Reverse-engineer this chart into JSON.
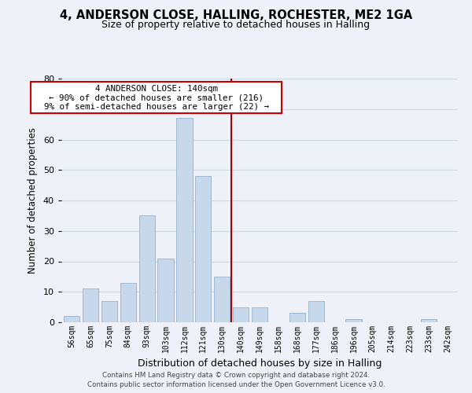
{
  "title1": "4, ANDERSON CLOSE, HALLING, ROCHESTER, ME2 1GA",
  "title2": "Size of property relative to detached houses in Halling",
  "xlabel": "Distribution of detached houses by size in Halling",
  "ylabel": "Number of detached properties",
  "bar_labels": [
    "56sqm",
    "65sqm",
    "75sqm",
    "84sqm",
    "93sqm",
    "103sqm",
    "112sqm",
    "121sqm",
    "130sqm",
    "140sqm",
    "149sqm",
    "158sqm",
    "168sqm",
    "177sqm",
    "186sqm",
    "196sqm",
    "205sqm",
    "214sqm",
    "223sqm",
    "233sqm",
    "242sqm"
  ],
  "bar_heights": [
    2,
    11,
    7,
    13,
    35,
    21,
    67,
    48,
    15,
    5,
    5,
    0,
    3,
    7,
    0,
    1,
    0,
    0,
    0,
    1,
    0
  ],
  "bar_color": "#c8d8eb",
  "bar_edge_color": "#a0b8d0",
  "vline_index": 9,
  "annotation_title": "4 ANDERSON CLOSE: 140sqm",
  "annotation_line1": "← 90% of detached houses are smaller (216)",
  "annotation_line2": "9% of semi-detached houses are larger (22) →",
  "annotation_box_color": "#ffffff",
  "annotation_box_edge": "#cc0000",
  "vline_color": "#aa0000",
  "ylim": [
    0,
    80
  ],
  "yticks": [
    0,
    10,
    20,
    30,
    40,
    50,
    60,
    70,
    80
  ],
  "grid_color": "#d0d8e4",
  "footnote1": "Contains HM Land Registry data © Crown copyright and database right 2024.",
  "footnote2": "Contains public sector information licensed under the Open Government Licence v3.0.",
  "bg_color": "#eef2f8"
}
